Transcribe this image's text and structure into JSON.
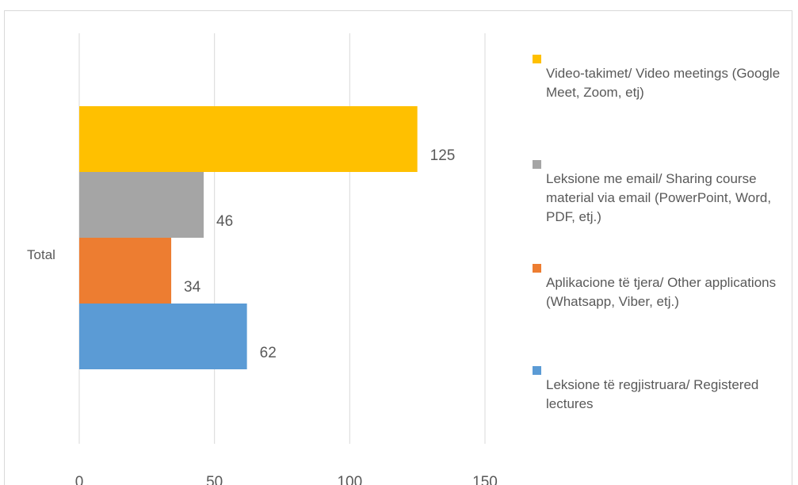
{
  "chart_data": {
    "type": "bar",
    "orientation": "horizontal",
    "categories": [
      "Total"
    ],
    "series": [
      {
        "name": "Video-takimet/ Video meetings  (Google Meet, Zoom, etj)",
        "values": [
          125
        ],
        "color": "#FFC000"
      },
      {
        "name": "Leksione me email/ Sharing course material via email  (PowerPoint, Word, PDF, etj.)",
        "values": [
          46
        ],
        "color": "#A5A5A5"
      },
      {
        "name": "Aplikacione të tjera/ Other applications  (Whatsapp, Viber, etj.)",
        "values": [
          34
        ],
        "color": "#ED7D31"
      },
      {
        "name": "Leksione të regjistruara/ Registered lectures",
        "values": [
          62
        ],
        "color": "#5B9BD5"
      }
    ],
    "xlim": [
      0,
      150
    ],
    "x_ticks": [
      0,
      50,
      100,
      150
    ],
    "data_labels": true,
    "grid": "vertical",
    "legend_position": "right",
    "colors": {
      "grid": "#D9D9D9",
      "text": "#595959",
      "frame": "#D9D9D9"
    }
  },
  "legend_items": [
    {
      "label": "Video-takimet/ Video meetings  (Google Meet, Zoom, etj)",
      "color": "#FFC000"
    },
    {
      "label": " Leksione me email/ Sharing course material via email  (PowerPoint, Word, PDF, etj.)",
      "color": "#A5A5A5"
    },
    {
      "label": "Aplikacione të tjera/ Other applications  (Whatsapp, Viber, etj.)",
      "color": "#ED7D31"
    },
    {
      "label": "Leksione të regjistruara/ Registered lectures",
      "color": "#5B9BD5"
    }
  ]
}
